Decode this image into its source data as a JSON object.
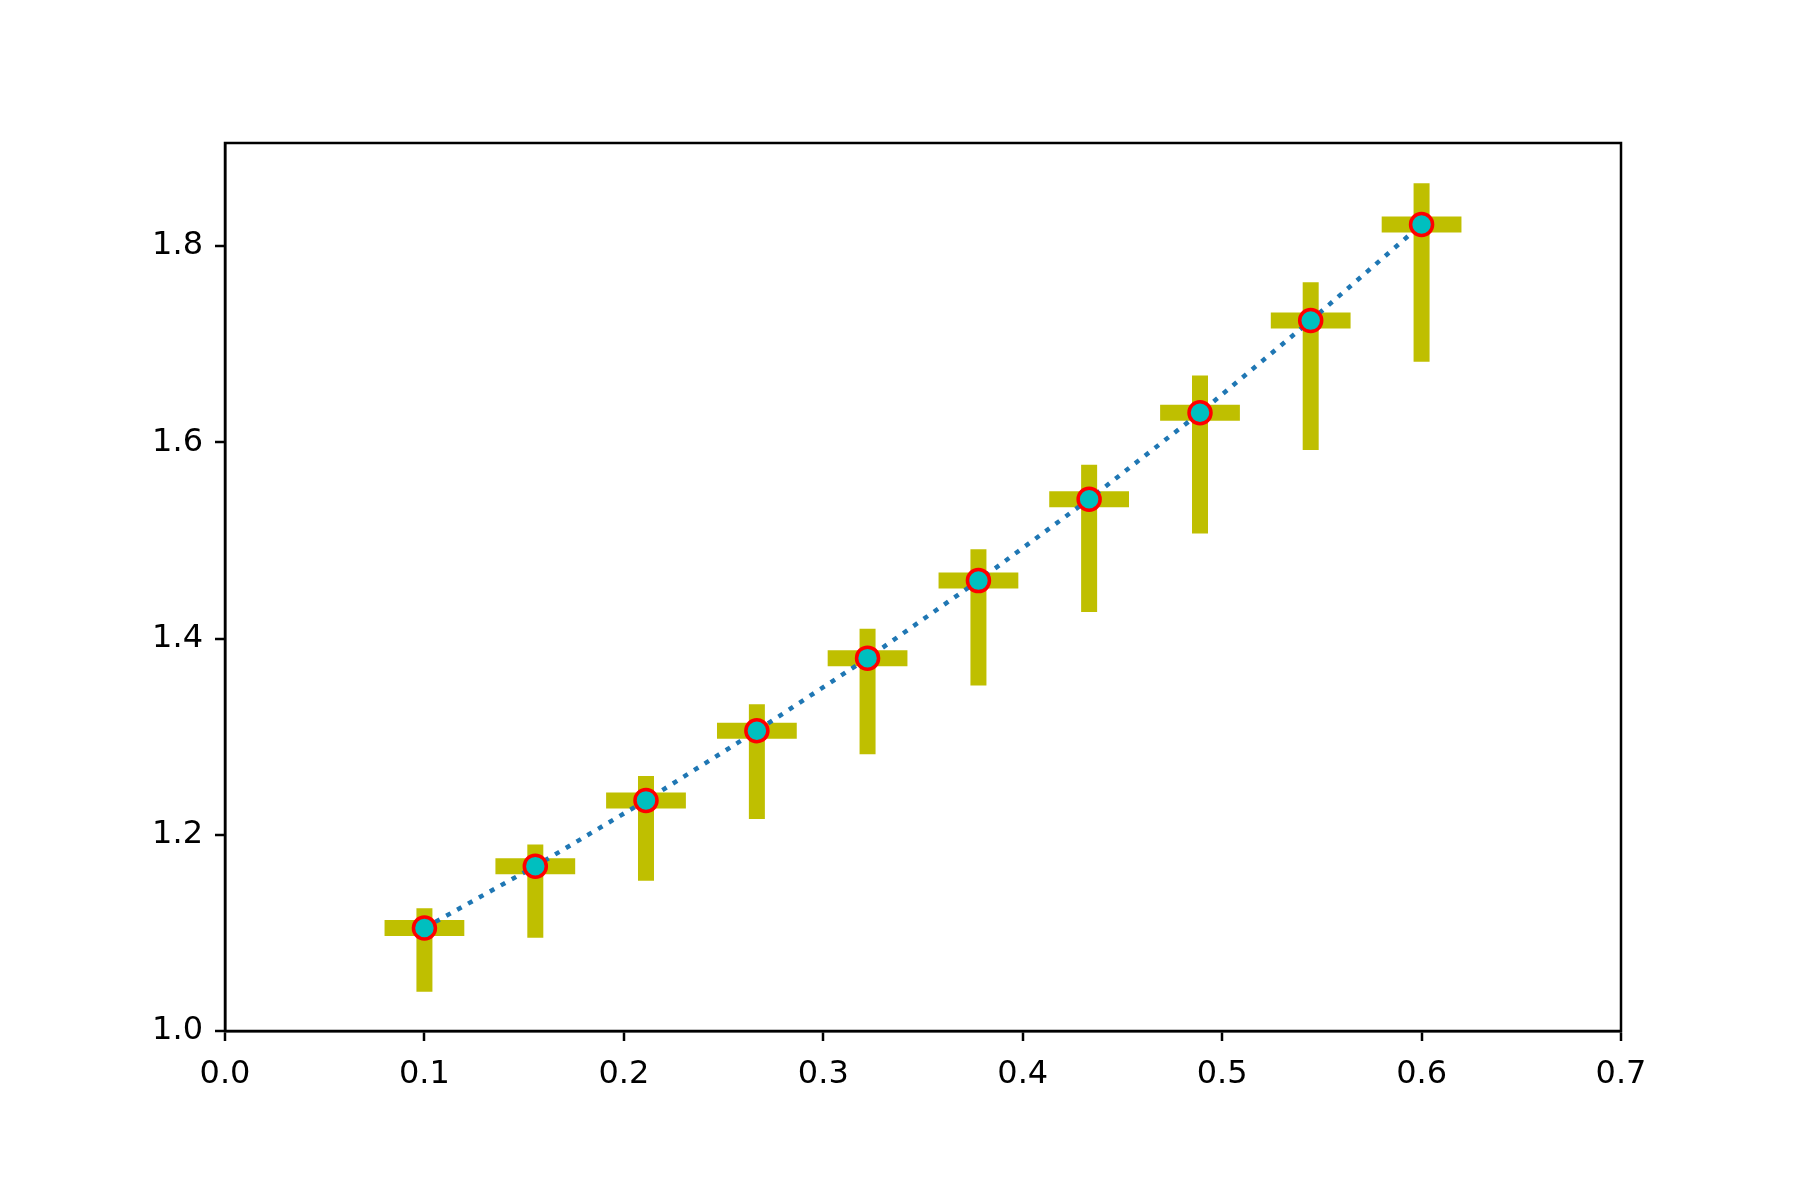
{
  "chart_data": {
    "type": "line",
    "x": [
      0.1,
      0.1556,
      0.2111,
      0.2667,
      0.3222,
      0.3778,
      0.4333,
      0.4889,
      0.5444,
      0.6
    ],
    "series": [
      {
        "color": "#1f77b4",
        "values": [
          1.105,
          1.168,
          1.235,
          1.306,
          1.38,
          1.459,
          1.542,
          1.63,
          1.724,
          1.822
        ],
        "errors": [
          [
            1.04,
            1.125
          ],
          [
            1.095,
            1.19
          ],
          [
            1.153,
            1.26
          ],
          [
            1.216,
            1.333
          ],
          [
            1.282,
            1.41
          ],
          [
            1.352,
            1.491
          ],
          [
            1.427,
            1.577
          ],
          [
            1.507,
            1.668
          ],
          [
            1.592,
            1.763
          ],
          [
            1.682,
            1.864
          ]
        ],
        "xerrors": [
          0.02,
          0.02,
          0.02,
          0.02,
          0.02,
          0.02,
          0.02,
          0.02,
          0.02,
          0.02
        ]
      }
    ],
    "xlim": [
      0,
      0.7
    ],
    "xticks": [
      {
        "value": 0,
        "label": "0.0"
      },
      0.1,
      0.2,
      0.3,
      0.4,
      0.5,
      0.6,
      0.7
    ],
    "ylim": [
      1.0,
      1.905
    ],
    "yticks": [
      {
        "value": 1,
        "label": "1.0"
      },
      1.2,
      1.4,
      1.6,
      1.8
    ],
    "grid": false,
    "legend": false,
    "marker": "circle",
    "line_style": "dotted"
  }
}
